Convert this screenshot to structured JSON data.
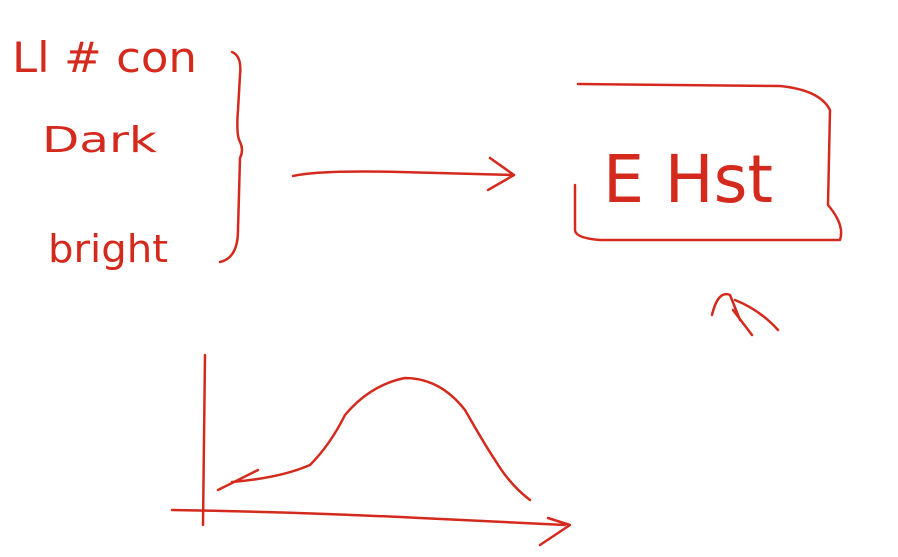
{
  "labels": [
    "Ll # con",
    "Dark",
    "bright"
  ],
  "box_label": "E Hst"
}
